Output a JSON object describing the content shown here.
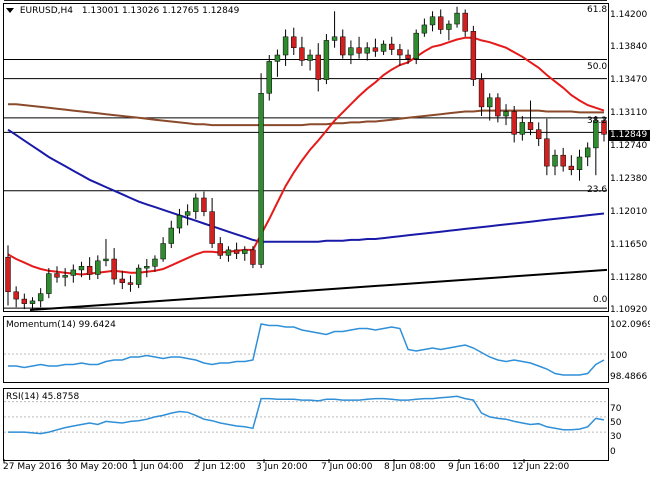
{
  "header": {
    "symbol": "EURUSD,H4",
    "ohlc": "1.13001 1.13026 1.12765 1.12849"
  },
  "price_axis": [
    "1.14200",
    "1.13840",
    "1.13470",
    "1.13110",
    "1.12740",
    "1.12380",
    "1.12010",
    "1.11650",
    "1.11280",
    "1.10920"
  ],
  "last_price": "1.12849",
  "fibo_levels": [
    "61.8",
    "50.0",
    "38.2",
    "23.6",
    "0.0"
  ],
  "momentum": {
    "title": "Momentum(14) 99.6424",
    "axis": [
      "102.0969",
      "100",
      "98.4866"
    ]
  },
  "rsi": {
    "title": "RSI(14) 45.8758",
    "axis": [
      "70",
      "50",
      "30",
      "0"
    ]
  },
  "time_axis": [
    "27 May 2016",
    "30 May 20:00",
    "1 Jun 04:00",
    "2 Jun 12:00",
    "3 Jun 20:00",
    "7 Jun 00:00",
    "8 Jun 08:00",
    "9 Jun 16:00",
    "12 Jun 22:00"
  ],
  "colors": {
    "bull": "#2e8b2e",
    "bear": "#d0201f",
    "sma_fast": "#e51b1b",
    "sma_mid": "#8b4a2b",
    "sma_slow": "#1a1aa8",
    "trend": "#000000",
    "indicator": "#2f8fd8"
  },
  "chart_data": {
    "type": "candlestick",
    "symbol": "EURUSD",
    "timeframe": "H4",
    "candles": [
      {
        "o": 1.115,
        "h": 1.1163,
        "l": 1.1097,
        "c": 1.1112
      },
      {
        "o": 1.1112,
        "h": 1.1118,
        "l": 1.1095,
        "c": 1.1104
      },
      {
        "o": 1.1104,
        "h": 1.111,
        "l": 1.1093,
        "c": 1.1099
      },
      {
        "o": 1.1099,
        "h": 1.1106,
        "l": 1.1092,
        "c": 1.1102
      },
      {
        "o": 1.1102,
        "h": 1.1116,
        "l": 1.1095,
        "c": 1.111
      },
      {
        "o": 1.111,
        "h": 1.1138,
        "l": 1.1105,
        "c": 1.1132
      },
      {
        "o": 1.1132,
        "h": 1.114,
        "l": 1.1122,
        "c": 1.1128
      },
      {
        "o": 1.1128,
        "h": 1.1138,
        "l": 1.1118,
        "c": 1.113
      },
      {
        "o": 1.113,
        "h": 1.1142,
        "l": 1.1122,
        "c": 1.1136
      },
      {
        "o": 1.1136,
        "h": 1.1145,
        "l": 1.1128,
        "c": 1.114
      },
      {
        "o": 1.114,
        "h": 1.115,
        "l": 1.1125,
        "c": 1.1131
      },
      {
        "o": 1.1131,
        "h": 1.1152,
        "l": 1.1126,
        "c": 1.1146
      },
      {
        "o": 1.1146,
        "h": 1.117,
        "l": 1.114,
        "c": 1.1148
      },
      {
        "o": 1.1148,
        "h": 1.116,
        "l": 1.112,
        "c": 1.1126
      },
      {
        "o": 1.1126,
        "h": 1.1135,
        "l": 1.1115,
        "c": 1.1122
      },
      {
        "o": 1.1122,
        "h": 1.113,
        "l": 1.1112,
        "c": 1.112
      },
      {
        "o": 1.112,
        "h": 1.1142,
        "l": 1.1116,
        "c": 1.1138
      },
      {
        "o": 1.1138,
        "h": 1.1148,
        "l": 1.1128,
        "c": 1.114
      },
      {
        "o": 1.114,
        "h": 1.1152,
        "l": 1.1134,
        "c": 1.1148
      },
      {
        "o": 1.1148,
        "h": 1.1172,
        "l": 1.1145,
        "c": 1.1165
      },
      {
        "o": 1.1165,
        "h": 1.119,
        "l": 1.116,
        "c": 1.1182
      },
      {
        "o": 1.1182,
        "h": 1.1203,
        "l": 1.1176,
        "c": 1.1196
      },
      {
        "o": 1.1196,
        "h": 1.1208,
        "l": 1.1185,
        "c": 1.12
      },
      {
        "o": 1.12,
        "h": 1.122,
        "l": 1.1192,
        "c": 1.1215
      },
      {
        "o": 1.1215,
        "h": 1.1222,
        "l": 1.1195,
        "c": 1.12
      },
      {
        "o": 1.12,
        "h": 1.1215,
        "l": 1.116,
        "c": 1.1165
      },
      {
        "o": 1.1165,
        "h": 1.1172,
        "l": 1.1148,
        "c": 1.1152
      },
      {
        "o": 1.1152,
        "h": 1.1162,
        "l": 1.1145,
        "c": 1.1158
      },
      {
        "o": 1.1158,
        "h": 1.1166,
        "l": 1.1148,
        "c": 1.1154
      },
      {
        "o": 1.1154,
        "h": 1.1162,
        "l": 1.1146,
        "c": 1.1158
      },
      {
        "o": 1.1158,
        "h": 1.1162,
        "l": 1.1138,
        "c": 1.1142
      },
      {
        "o": 1.1142,
        "h": 1.1352,
        "l": 1.1138,
        "c": 1.133
      },
      {
        "o": 1.133,
        "h": 1.1372,
        "l": 1.1322,
        "c": 1.1365
      },
      {
        "o": 1.1365,
        "h": 1.1378,
        "l": 1.1348,
        "c": 1.1372
      },
      {
        "o": 1.1372,
        "h": 1.14,
        "l": 1.136,
        "c": 1.1392
      },
      {
        "o": 1.1392,
        "h": 1.1402,
        "l": 1.1372,
        "c": 1.138
      },
      {
        "o": 1.138,
        "h": 1.1392,
        "l": 1.136,
        "c": 1.1366
      },
      {
        "o": 1.1366,
        "h": 1.1378,
        "l": 1.1355,
        "c": 1.1372
      },
      {
        "o": 1.1372,
        "h": 1.1385,
        "l": 1.1332,
        "c": 1.1345
      },
      {
        "o": 1.1345,
        "h": 1.1395,
        "l": 1.134,
        "c": 1.1388
      },
      {
        "o": 1.1388,
        "h": 1.142,
        "l": 1.138,
        "c": 1.1392
      },
      {
        "o": 1.1392,
        "h": 1.14,
        "l": 1.1368,
        "c": 1.1372
      },
      {
        "o": 1.1372,
        "h": 1.1388,
        "l": 1.1362,
        "c": 1.138
      },
      {
        "o": 1.138,
        "h": 1.1392,
        "l": 1.1368,
        "c": 1.1374
      },
      {
        "o": 1.1374,
        "h": 1.1386,
        "l": 1.1366,
        "c": 1.138
      },
      {
        "o": 1.138,
        "h": 1.139,
        "l": 1.137,
        "c": 1.1376
      },
      {
        "o": 1.1376,
        "h": 1.1388,
        "l": 1.1372,
        "c": 1.1384
      },
      {
        "o": 1.1384,
        "h": 1.1392,
        "l": 1.1372,
        "c": 1.1378
      },
      {
        "o": 1.1378,
        "h": 1.1384,
        "l": 1.136,
        "c": 1.1372
      },
      {
        "o": 1.1372,
        "h": 1.1378,
        "l": 1.1362,
        "c": 1.1368
      },
      {
        "o": 1.1368,
        "h": 1.14,
        "l": 1.1362,
        "c": 1.1396
      },
      {
        "o": 1.1396,
        "h": 1.1412,
        "l": 1.1392,
        "c": 1.1405
      },
      {
        "o": 1.1405,
        "h": 1.142,
        "l": 1.1398,
        "c": 1.1414
      },
      {
        "o": 1.1414,
        "h": 1.1422,
        "l": 1.1395,
        "c": 1.14
      },
      {
        "o": 1.14,
        "h": 1.141,
        "l": 1.1388,
        "c": 1.1406
      },
      {
        "o": 1.1406,
        "h": 1.1425,
        "l": 1.1402,
        "c": 1.1418
      },
      {
        "o": 1.1418,
        "h": 1.1422,
        "l": 1.1392,
        "c": 1.1398
      },
      {
        "o": 1.1398,
        "h": 1.1404,
        "l": 1.1338,
        "c": 1.1345
      },
      {
        "o": 1.1345,
        "h": 1.1352,
        "l": 1.1305,
        "c": 1.1315
      },
      {
        "o": 1.1315,
        "h": 1.133,
        "l": 1.13,
        "c": 1.1325
      },
      {
        "o": 1.1325,
        "h": 1.133,
        "l": 1.1298,
        "c": 1.1305
      },
      {
        "o": 1.1305,
        "h": 1.1318,
        "l": 1.1295,
        "c": 1.131
      },
      {
        "o": 1.131,
        "h": 1.1316,
        "l": 1.1276,
        "c": 1.1285
      },
      {
        "o": 1.1285,
        "h": 1.1305,
        "l": 1.1278,
        "c": 1.1298
      },
      {
        "o": 1.1298,
        "h": 1.1322,
        "l": 1.1284,
        "c": 1.129
      },
      {
        "o": 1.129,
        "h": 1.1298,
        "l": 1.1272,
        "c": 1.128
      },
      {
        "o": 1.128,
        "h": 1.1302,
        "l": 1.124,
        "c": 1.125
      },
      {
        "o": 1.125,
        "h": 1.1268,
        "l": 1.124,
        "c": 1.1262
      },
      {
        "o": 1.1262,
        "h": 1.127,
        "l": 1.1244,
        "c": 1.125
      },
      {
        "o": 1.125,
        "h": 1.1262,
        "l": 1.124,
        "c": 1.1246
      },
      {
        "o": 1.1246,
        "h": 1.1268,
        "l": 1.1234,
        "c": 1.126
      },
      {
        "o": 1.126,
        "h": 1.1276,
        "l": 1.125,
        "c": 1.127
      },
      {
        "o": 1.127,
        "h": 1.1305,
        "l": 1.124,
        "c": 1.13
      },
      {
        "o": 1.13,
        "h": 1.1303,
        "l": 1.1277,
        "c": 1.1285
      }
    ],
    "sma_fast": [
      1.1153,
      1.1148,
      1.1144,
      1.114,
      1.1137,
      1.1135,
      1.1134,
      1.1133,
      1.1132,
      1.1131,
      1.1132,
      1.1133,
      1.1134,
      1.1135,
      1.1134,
      1.1133,
      1.1133,
      1.1134,
      1.1135,
      1.1137,
      1.1141,
      1.1145,
      1.1149,
      1.1153,
      1.1156,
      1.1156,
      1.1155,
      1.1156,
      1.1157,
      1.1158,
      1.1158,
      1.1175,
      1.1192,
      1.121,
      1.1228,
      1.1243,
      1.1256,
      1.1268,
      1.1278,
      1.1289,
      1.13,
      1.1309,
      1.1318,
      1.1327,
      1.1335,
      1.1342,
      1.135,
      1.1356,
      1.1361,
      1.1364,
      1.137,
      1.1376,
      1.1381,
      1.1383,
      1.1386,
      1.1389,
      1.1391,
      1.1391,
      1.1388,
      1.1386,
      1.1383,
      1.138,
      1.1375,
      1.137,
      1.1364,
      1.1358,
      1.135,
      1.1343,
      1.1336,
      1.1328,
      1.1322,
      1.1317,
      1.1314,
      1.1311
    ],
    "sma_mid": [
      1.1318,
      1.1318,
      1.1317,
      1.1316,
      1.1315,
      1.1314,
      1.1313,
      1.1312,
      1.1311,
      1.131,
      1.1309,
      1.1308,
      1.1307,
      1.1306,
      1.1305,
      1.1304,
      1.1303,
      1.1302,
      1.1301,
      1.13,
      1.1299,
      1.1298,
      1.1297,
      1.1296,
      1.1296,
      1.1295,
      1.1295,
      1.1295,
      1.1295,
      1.1295,
      1.1295,
      1.1295,
      1.1295,
      1.1295,
      1.1295,
      1.1295,
      1.1295,
      1.1296,
      1.1296,
      1.1296,
      1.1297,
      1.1297,
      1.1298,
      1.1298,
      1.1299,
      1.1299,
      1.13,
      1.1301,
      1.1302,
      1.1303,
      1.1304,
      1.1305,
      1.1306,
      1.1307,
      1.1308,
      1.1309,
      1.131,
      1.131,
      1.1311,
      1.1311,
      1.1311,
      1.1311,
      1.1311,
      1.1311,
      1.1311,
      1.1311,
      1.131,
      1.131,
      1.131,
      1.131,
      1.1309,
      1.1309,
      1.1309,
      1.1309
    ],
    "sma_slow": [
      1.129,
      1.1284,
      1.1278,
      1.1272,
      1.1266,
      1.126,
      1.1255,
      1.125,
      1.1245,
      1.124,
      1.1235,
      1.1231,
      1.1227,
      1.1223,
      1.1219,
      1.1215,
      1.1211,
      1.1208,
      1.1205,
      1.1202,
      1.1199,
      1.1196,
      1.1193,
      1.119,
      1.1187,
      1.1184,
      1.1181,
      1.1178,
      1.1175,
      1.1172,
      1.1169,
      1.1167,
      1.1167,
      1.1167,
      1.1167,
      1.1167,
      1.1167,
      1.1167,
      1.1167,
      1.1168,
      1.1168,
      1.1168,
      1.1169,
      1.1169,
      1.117,
      1.117,
      1.1171,
      1.1172,
      1.1173,
      1.1174,
      1.1175,
      1.1176,
      1.1177,
      1.1178,
      1.1179,
      1.118,
      1.1181,
      1.1182,
      1.1183,
      1.1184,
      1.1185,
      1.1186,
      1.1187,
      1.1188,
      1.1189,
      1.119,
      1.1191,
      1.1192,
      1.1193,
      1.1194,
      1.1195,
      1.1196,
      1.1197,
      1.1198
    ],
    "trend_line": {
      "start": 1.1092,
      "end": 1.1136
    },
    "fibo": {
      "0.0": 1.1094,
      "23.6": 1.1223,
      "38.2": 1.1303,
      "50.0": 1.1367,
      "61.8": 1.1432
    },
    "horizontal_lines": [
      1.1346,
      1.1287
    ],
    "price_range": [
      1.1092,
      1.1428
    ],
    "momentum": [
      99.2,
      99.2,
      99.1,
      99.2,
      99.3,
      99.2,
      99.2,
      99.3,
      99.3,
      99.4,
      99.3,
      99.3,
      99.5,
      99.6,
      99.6,
      99.8,
      99.8,
      99.9,
      99.8,
      99.7,
      99.8,
      99.8,
      99.7,
      99.6,
      99.4,
      99.3,
      99.4,
      99.4,
      99.5,
      99.5,
      99.6,
      102.0,
      101.9,
      101.9,
      101.8,
      101.8,
      101.6,
      101.5,
      101.4,
      101.3,
      101.5,
      101.5,
      101.6,
      101.7,
      101.7,
      101.6,
      101.7,
      101.8,
      101.7,
      100.3,
      100.2,
      100.3,
      100.4,
      100.3,
      100.4,
      100.5,
      100.6,
      100.4,
      100.1,
      99.8,
      99.6,
      99.5,
      99.6,
      99.5,
      99.4,
      99.2,
      99.0,
      98.7,
      98.6,
      98.6,
      98.6,
      98.7,
      99.3,
      99.6
    ],
    "momentum_range": [
      98.2,
      102.4
    ],
    "rsi": [
      30,
      30,
      30,
      29,
      28,
      30,
      33,
      36,
      38,
      40,
      42,
      40,
      44,
      43,
      42,
      44,
      45,
      47,
      50,
      52,
      55,
      57,
      56,
      52,
      47,
      45,
      42,
      40,
      38,
      37,
      35,
      74,
      74,
      73,
      73,
      73,
      72,
      72,
      71,
      73,
      73,
      72,
      72,
      72,
      73,
      74,
      74,
      73,
      72,
      72,
      73,
      74,
      74,
      75,
      76,
      77,
      74,
      72,
      55,
      50,
      48,
      47,
      44,
      42,
      40,
      41,
      37,
      35,
      33,
      33,
      34,
      37,
      48,
      46
    ],
    "rsi_levels": [
      70,
      50,
      30
    ]
  }
}
